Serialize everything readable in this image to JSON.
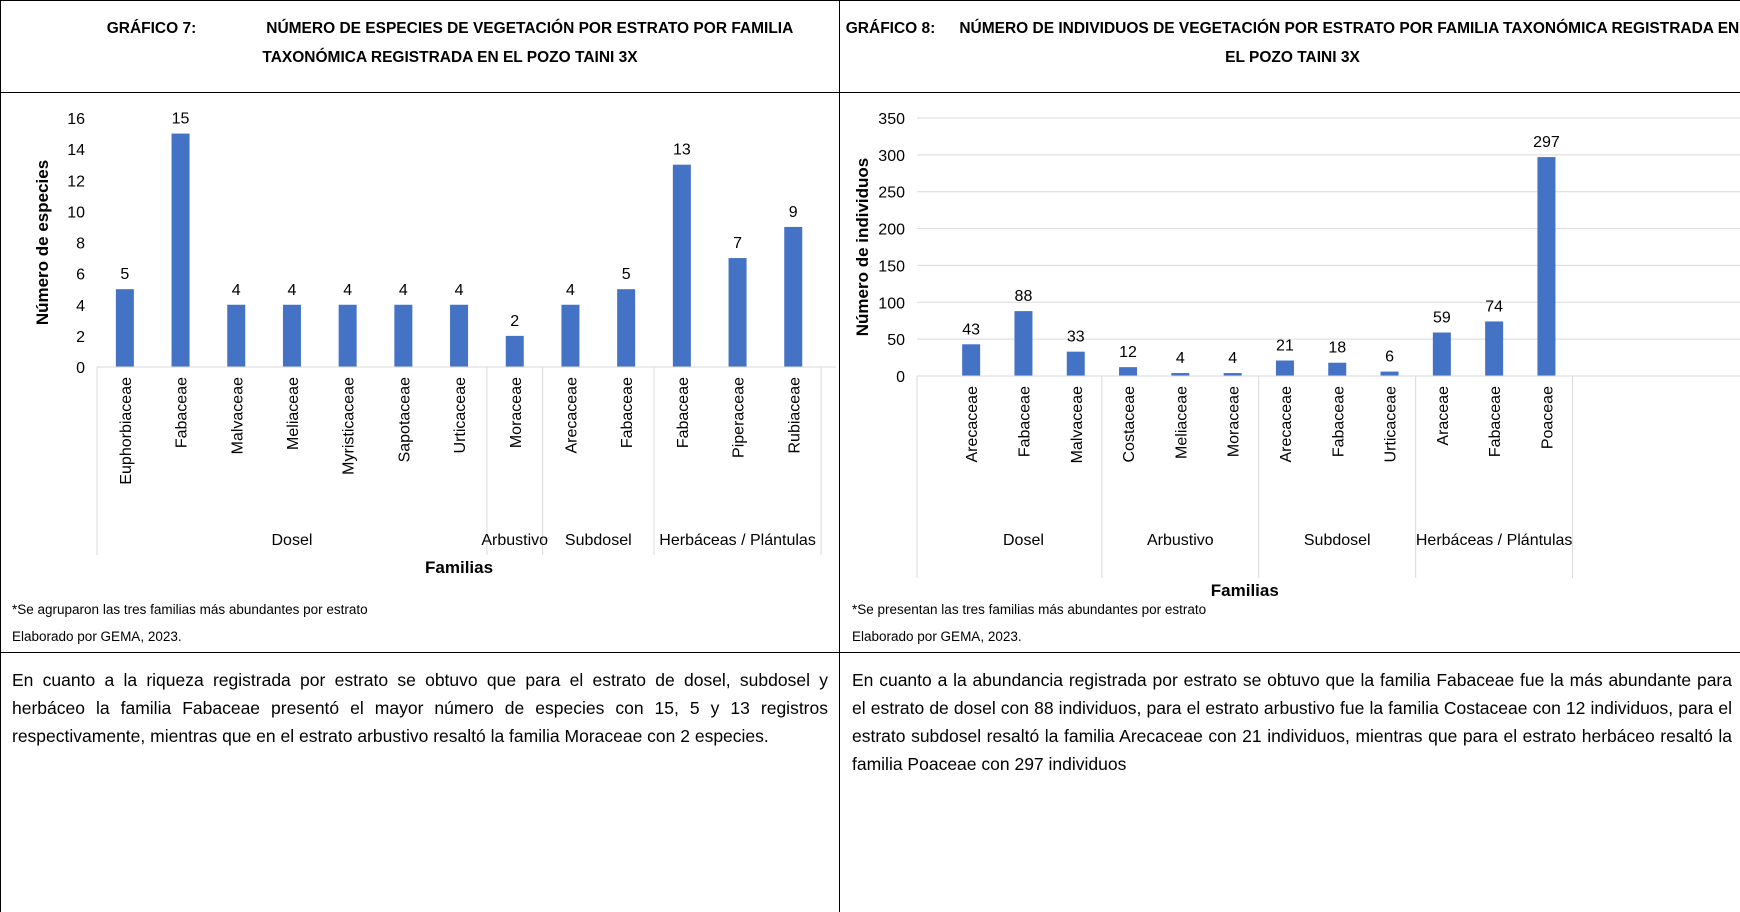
{
  "chart_data": [
    {
      "type": "bar",
      "figure_label": "GRÁFICO 7:",
      "title": "NÚMERO DE ESPECIES DE VEGETACIÓN POR ESTRATO POR FAMILIA TAXONÓMICA REGISTRADA EN EL POZO TAINI 3X",
      "y_label": "Número de especies",
      "x_label": "Familias",
      "color": "#4472c4",
      "grid": false,
      "ylim": [
        0,
        16
      ],
      "yticks": [
        0,
        2,
        4,
        6,
        8,
        10,
        12,
        14,
        16
      ],
      "groups": [
        {
          "name": "Dosel",
          "categories": [
            "Euphorbiaceae",
            "Fabaceae",
            "Malvaceae",
            "Meliaceae",
            "Myristicaceae",
            "Sapotaceae",
            "Urticaceae"
          ],
          "values": [
            5,
            15,
            4,
            4,
            4,
            4,
            4
          ]
        },
        {
          "name": "Arbustivo",
          "categories": [
            "Moraceae"
          ],
          "values": [
            2
          ]
        },
        {
          "name": "Subdosel",
          "categories": [
            "Arecaceae",
            "Fabaceae"
          ],
          "values": [
            4,
            5
          ]
        },
        {
          "name": "Herbáceas / Plántulas",
          "categories": [
            "Fabaceae",
            "Piperaceae",
            "Rubiaceae"
          ],
          "values": [
            13,
            7,
            9
          ]
        }
      ]
    },
    {
      "type": "bar",
      "figure_label": "GRÁFICO 8:",
      "title": "NÚMERO DE INDIVIDUOS DE VEGETACIÓN POR ESTRATO POR FAMILIA TAXONÓMICA REGISTRADA EN EL POZO TAINI 3X",
      "y_label": "Número de individuos",
      "x_label": "Familias",
      "color": "#4472c4",
      "grid": true,
      "ylim": [
        0,
        350
      ],
      "yticks": [
        0,
        50,
        100,
        150,
        200,
        250,
        300,
        350
      ],
      "groups": [
        {
          "name": "Dosel",
          "categories": [
            "Arecaceae",
            "Fabaceae",
            "Malvaceae"
          ],
          "values": [
            43,
            88,
            33
          ]
        },
        {
          "name": "Arbustivo",
          "categories": [
            "Costaceae",
            "Meliaceae",
            "Moraceae"
          ],
          "values": [
            12,
            4,
            4
          ]
        },
        {
          "name": "Subdosel",
          "categories": [
            "Arecaceae",
            "Fabaceae",
            "Urticaceae"
          ],
          "values": [
            21,
            18,
            6
          ]
        },
        {
          "name": "Herbáceas / Plántulas",
          "categories": [
            "Araceae",
            "Fabaceae",
            "Poaceae"
          ],
          "values": [
            59,
            74,
            297
          ]
        }
      ]
    }
  ],
  "panels": [
    {
      "notes": [
        "*Se agruparon las tres familias más abundantes por estrato",
        "Elaborado por GEMA, 2023."
      ],
      "text": "En cuanto a la riqueza registrada por estrato se obtuvo que para el estrato de dosel, subdosel y herbáceo la familia Fabaceae presentó el mayor número de especies con 15, 5 y 13 registros respectivamente, mientras que en el estrato arbustivo resaltó la familia Moraceae con 2 especies."
    },
    {
      "notes": [
        "*Se presentan las tres familias más abundantes por estrato",
        "Elaborado por GEMA, 2023."
      ],
      "text": "En cuanto a la abundancia registrada por estrato se obtuvo que la familia Fabaceae fue la más abundante para el estrato de dosel con 88 individuos, para el estrato arbustivo fue la familia Costaceae con 12 individuos, para el estrato subdosel resaltó la familia Arecaceae con 21 individuos, mientras que para el estrato herbáceo resaltó la familia Poaceae con 297 individuos"
    }
  ]
}
